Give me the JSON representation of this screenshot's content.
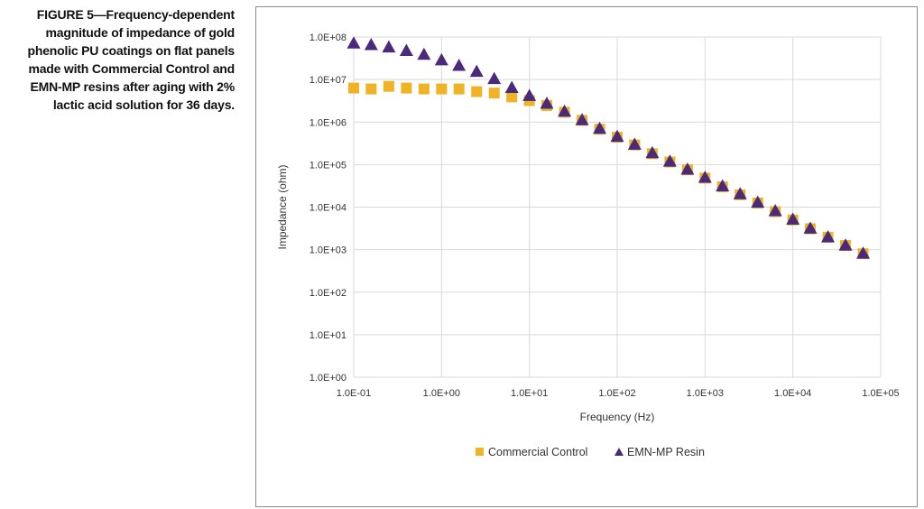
{
  "caption": {
    "text": "FIGURE 5—Frequency-dependent magnitude of impedance of gold phenolic PU coatings on flat panels made with Commercial Control and EMN-MP resins after aging with 2% lactic acid solution for 36 days."
  },
  "chart_data": {
    "type": "scatter",
    "xscale": "log",
    "yscale": "log",
    "xlabel": "Frequency (Hz)",
    "ylabel": "Impedance (ohm)",
    "xlim": [
      0.1,
      100000
    ],
    "ylim": [
      1,
      100000000
    ],
    "x_ticks": [
      0.1,
      1,
      10,
      100,
      1000,
      10000,
      100000
    ],
    "x_tick_labels": [
      "1.0E-01",
      "1.0E+00",
      "1.0E+01",
      "1.0E+02",
      "1.0E+03",
      "1.0E+04",
      "1.0E+05"
    ],
    "y_ticks": [
      1,
      10,
      100,
      1000,
      10000,
      100000,
      1000000,
      10000000,
      100000000
    ],
    "y_tick_labels": [
      "1.0E+00",
      "1.0E+01",
      "1.0E+02",
      "1.0E+03",
      "1.0E+04",
      "1.0E+05",
      "1.0E+06",
      "1.0E+07",
      "1.0E+08"
    ],
    "grid": true,
    "legend_position": "bottom",
    "series": [
      {
        "name": "Commercial Control",
        "marker": "square",
        "color": "#F0B323",
        "x": [
          0.1,
          0.158,
          0.251,
          0.398,
          0.631,
          1,
          1.58,
          2.51,
          3.98,
          6.31,
          10,
          15.8,
          25.1,
          39.8,
          63.1,
          100,
          158,
          251,
          398,
          631,
          1000,
          1580,
          2510,
          3980,
          6310,
          10000,
          15800,
          25100,
          39800,
          63100
        ],
        "y": [
          6300000,
          6000000,
          6900000,
          6300000,
          6000000,
          6000000,
          6000000,
          5200000,
          4800000,
          3900000,
          3200000,
          2450000,
          1700000,
          1100000,
          680000,
          440000,
          290000,
          180000,
          115000,
          75000,
          48000,
          30000,
          19500,
          12500,
          7800,
          5000,
          3100,
          1950,
          1250,
          800
        ]
      },
      {
        "name": "EMN-MP Resin",
        "marker": "triangle",
        "color": "#4B2A7B",
        "x": [
          0.1,
          0.158,
          0.251,
          0.398,
          0.631,
          1,
          1.58,
          2.51,
          3.98,
          6.31,
          10,
          15.8,
          25.1,
          39.8,
          63.1,
          100,
          158,
          251,
          398,
          631,
          1000,
          1580,
          2510,
          3980,
          6310,
          10000,
          15800,
          25100,
          39800,
          63100
        ],
        "y": [
          72000000,
          66000000,
          58000000,
          48000000,
          39000000,
          29000000,
          21500000,
          15500000,
          10500000,
          6500000,
          4200000,
          2750000,
          1800000,
          1130000,
          710000,
          460000,
          300000,
          190000,
          120000,
          78000,
          50000,
          31500,
          20500,
          13000,
          8200,
          5200,
          3200,
          2000,
          1280,
          820
        ]
      }
    ]
  }
}
